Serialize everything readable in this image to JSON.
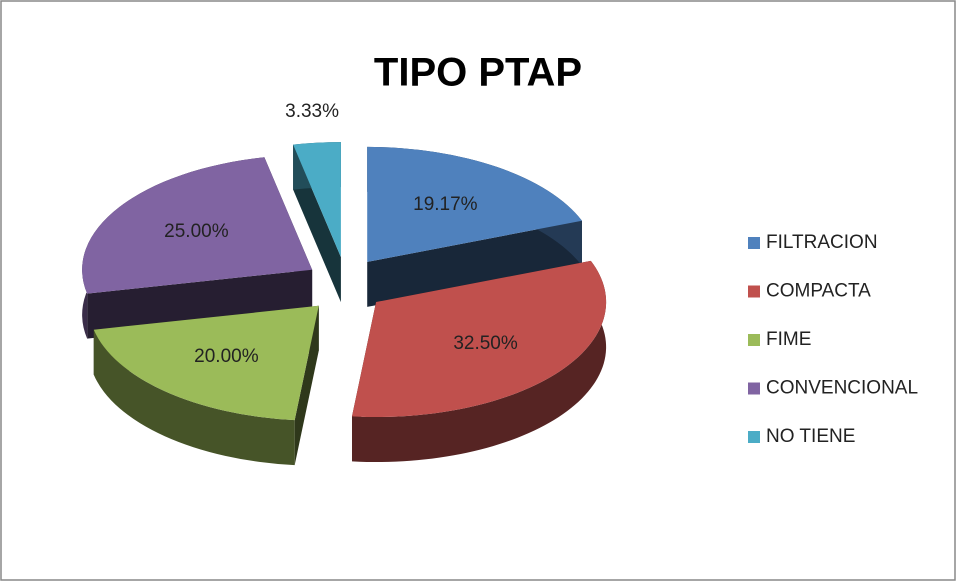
{
  "chart_data": {
    "type": "pie",
    "title": "TIPO PTAP",
    "categories": [
      "FILTRACION",
      "COMPACTA",
      "FIME",
      "CONVENCIONAL",
      "NO TIENE"
    ],
    "values": [
      19.17,
      32.5,
      20,
      25,
      3.33
    ],
    "value_labels": [
      "19.17%",
      "32.50%",
      "20.00%",
      "25.00%",
      "3.33%"
    ],
    "colors": [
      "#4f81bd",
      "#c0504d",
      "#9bbb59",
      "#8064a2",
      "#4bacc6"
    ],
    "legend": "right"
  }
}
